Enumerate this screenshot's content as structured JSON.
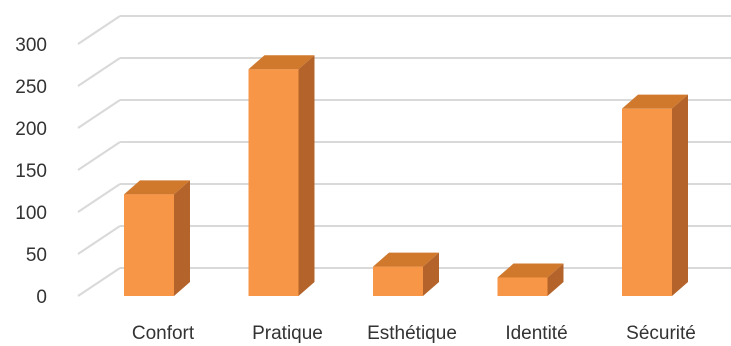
{
  "chart_data": {
    "type": "bar",
    "style": "3d-column",
    "categories": [
      "Confort",
      "Pratique",
      "Esthétique",
      "Identité",
      "Sécurité"
    ],
    "values": [
      121,
      270,
      35,
      22,
      223
    ],
    "ylim": [
      0,
      300
    ],
    "yticks": [
      "0",
      "50",
      "100",
      "150",
      "200",
      "250",
      "300"
    ],
    "grid": true,
    "legend": "none",
    "colors": {
      "bar_front": "#F79646",
      "bar_top": "#D0792D",
      "bar_side": "#B4642A",
      "grid": "#D9D9D9",
      "text": "#333333"
    }
  }
}
